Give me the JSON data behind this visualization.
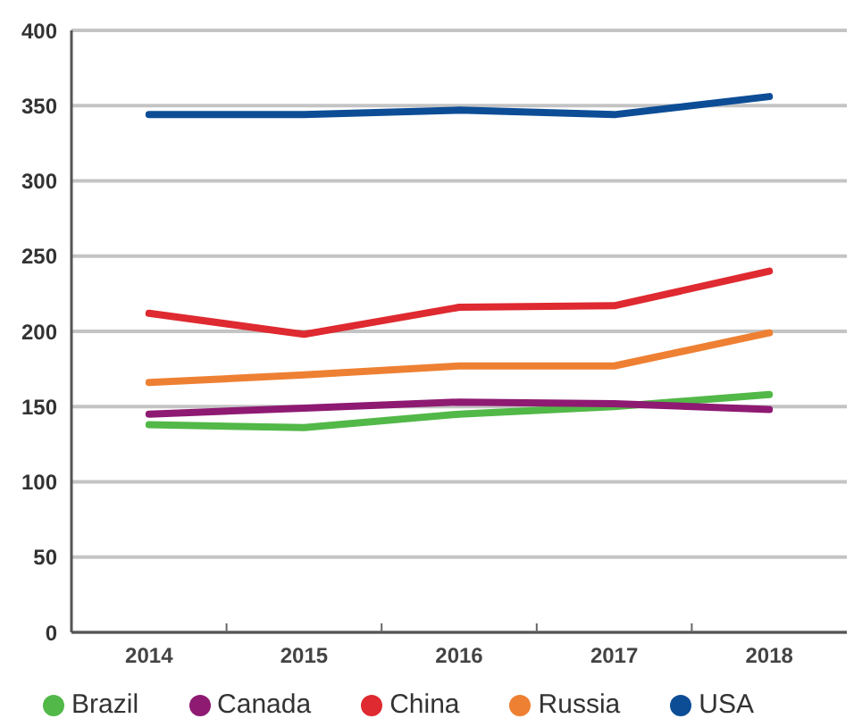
{
  "chart_data": {
    "type": "line",
    "categories": [
      "2014",
      "2015",
      "2016",
      "2017",
      "2018"
    ],
    "series": [
      {
        "name": "Brazil",
        "color": "#52b848",
        "values": [
          138,
          136,
          145,
          150,
          158
        ]
      },
      {
        "name": "Canada",
        "color": "#8e1a72",
        "values": [
          145,
          149,
          153,
          152,
          148
        ]
      },
      {
        "name": "China",
        "color": "#de2a30",
        "values": [
          212,
          198,
          216,
          217,
          240
        ]
      },
      {
        "name": "Russia",
        "color": "#ee8033",
        "values": [
          166,
          171,
          177,
          177,
          199
        ]
      },
      {
        "name": "USA",
        "color": "#0d4d96",
        "values": [
          344,
          344,
          347,
          344,
          356
        ]
      }
    ],
    "ylim": [
      0,
      400
    ],
    "yticks": [
      0,
      50,
      100,
      150,
      200,
      250,
      300,
      350,
      400
    ],
    "grid": "y",
    "legend": "bottom",
    "marker": "none",
    "line_style": "solid"
  }
}
